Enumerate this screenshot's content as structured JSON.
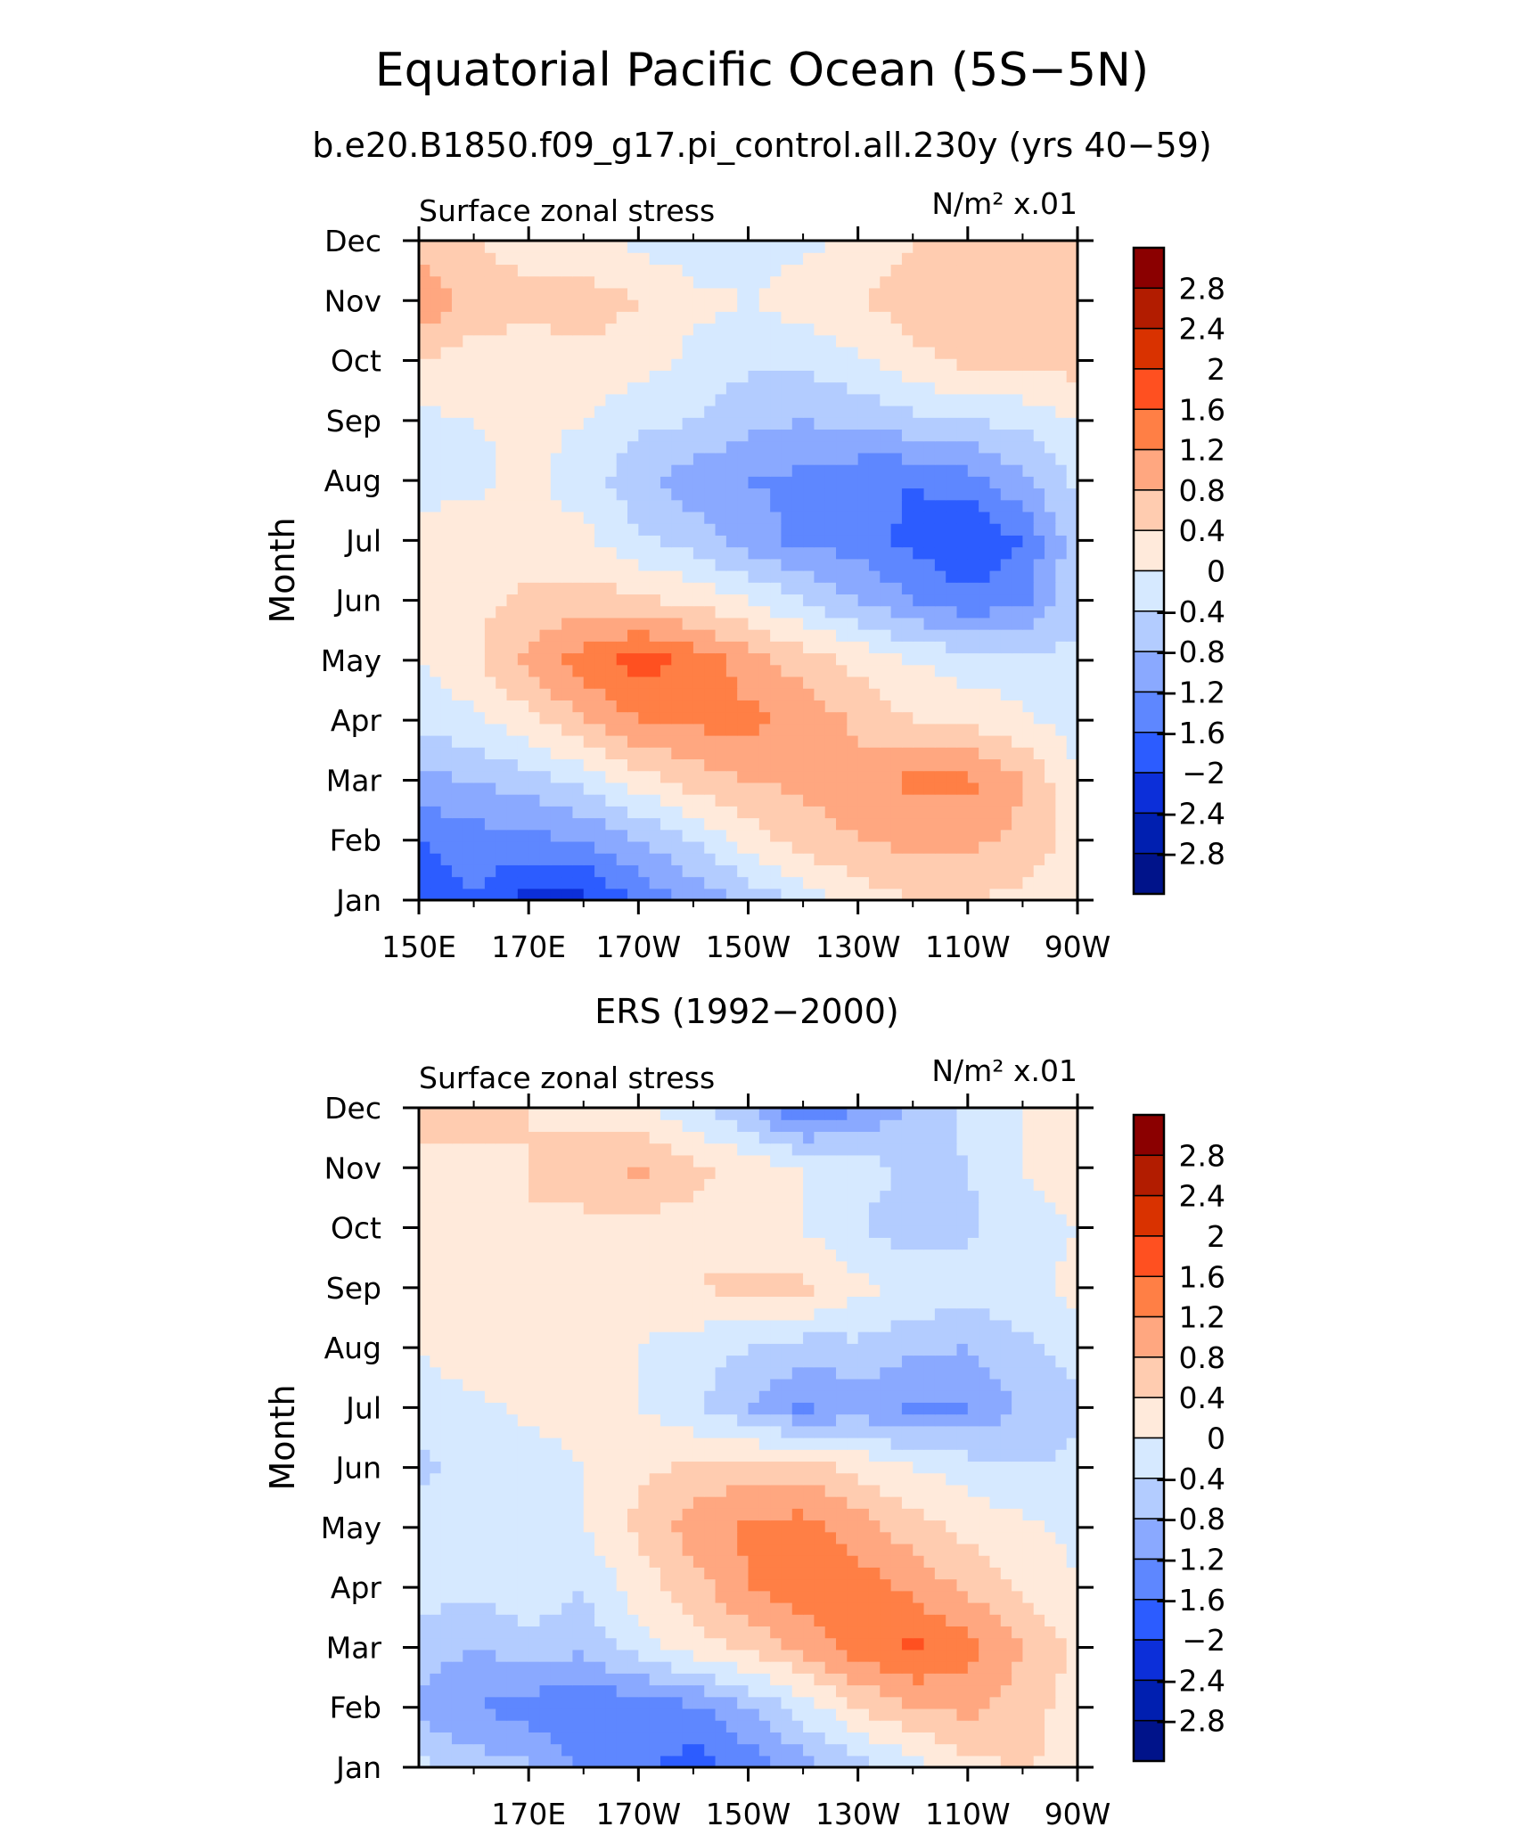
{
  "title": "Equatorial Pacific Ocean (5S−5N)",
  "panel_labels": [
    "b.e20.B1850.f09_g17.pi_control.all.230y (yrs 40−59)",
    "ERS (1992−2000)"
  ],
  "colorbar": {
    "levels": [
      "2.8",
      "2.4",
      "2",
      "1.6",
      "1.2",
      "0.8",
      "0.4",
      "0",
      "−0.4",
      "−0.8",
      "−1.2",
      "−1.6",
      "−2",
      "−2.4",
      "−2.8"
    ],
    "colors": [
      "#8b0000",
      "#b21c00",
      "#d93200",
      "#ff5020",
      "#ff7f45",
      "#ffa780",
      "#ffccb0",
      "#ffeadb",
      "#d6e9ff",
      "#b3ccff",
      "#8aa9ff",
      "#5e87ff",
      "#2c5cff",
      "#0c2fd9",
      "#001fb0",
      "#00138a"
    ]
  },
  "chart_data": [
    {
      "type": "heatmap",
      "title": "",
      "left_label": "Surface zonal stress",
      "right_label": "N/m² x.01",
      "ylabel": "Month",
      "xlabel": "",
      "x_ticks": [
        "150E",
        "170E",
        "170W",
        "150W",
        "130W",
        "110W",
        "90W"
      ],
      "y_ticks": [
        "Jan",
        "Feb",
        "Mar",
        "Apr",
        "May",
        "Jun",
        "Jul",
        "Aug",
        "Sep",
        "Oct",
        "Nov",
        "Dec"
      ],
      "xlim": [
        "150E",
        "90W"
      ],
      "x": [
        "150E",
        "160E",
        "170E",
        "180",
        "170W",
        "160W",
        "150W",
        "140W",
        "130W",
        "120W",
        "110W",
        "100W",
        "90W"
      ],
      "y": [
        "Jan",
        "Feb",
        "Mar",
        "Apr",
        "May",
        "Jun",
        "Jul",
        "Aug",
        "Sep",
        "Oct",
        "Nov",
        "Dec"
      ],
      "values": [
        [
          -1.9,
          -1.6,
          -2.2,
          -2.1,
          -1.5,
          -1.1,
          -0.7,
          -0.3,
          0.2,
          0.4,
          0.4,
          0.3,
          0.1
        ],
        [
          -1.6,
          -1.4,
          -1.3,
          -1.2,
          -0.8,
          -0.4,
          0.2,
          0.6,
          0.8,
          0.9,
          0.9,
          0.7,
          0.2
        ],
        [
          -0.9,
          -0.8,
          -0.6,
          -0.3,
          0.2,
          0.6,
          0.8,
          0.9,
          1.0,
          1.3,
          1.3,
          0.8,
          0.0
        ],
        [
          -0.3,
          -0.1,
          0.3,
          0.8,
          1.2,
          1.3,
          1.3,
          1.1,
          0.7,
          0.4,
          0.3,
          0.1,
          -0.2
        ],
        [
          0.0,
          0.3,
          0.9,
          1.4,
          1.8,
          1.5,
          1.0,
          0.6,
          0.3,
          0.0,
          -0.2,
          -0.3,
          -0.3
        ],
        [
          0.1,
          0.3,
          0.5,
          0.6,
          0.5,
          0.3,
          0.0,
          -0.4,
          -0.8,
          -1.2,
          -1.5,
          -1.3,
          -0.5
        ],
        [
          0.1,
          0.2,
          0.2,
          0.1,
          -0.3,
          -0.6,
          -1.0,
          -1.3,
          -1.4,
          -1.7,
          -2.0,
          -1.6,
          -0.5
        ],
        [
          -0.1,
          -0.1,
          0.1,
          -0.2,
          -0.7,
          -1.0,
          -1.2,
          -1.3,
          -1.5,
          -1.6,
          -1.4,
          -0.9,
          -0.3
        ],
        [
          -0.1,
          0.0,
          0.1,
          0.0,
          -0.3,
          -0.4,
          -0.7,
          -0.8,
          -0.7,
          -0.5,
          -0.4,
          -0.3,
          0.0
        ],
        [
          0.4,
          0.2,
          0.2,
          0.3,
          0.2,
          -0.1,
          -0.3,
          -0.3,
          -0.1,
          0.3,
          0.5,
          0.5,
          0.6
        ],
        [
          1.1,
          0.7,
          0.5,
          0.6,
          0.4,
          0.1,
          0.0,
          0.2,
          0.4,
          0.6,
          0.6,
          0.8,
          0.6
        ],
        [
          0.6,
          0.4,
          0.2,
          0.1,
          -0.1,
          -0.2,
          -0.2,
          -0.1,
          0.1,
          0.4,
          0.4,
          0.4,
          0.4
        ]
      ]
    },
    {
      "type": "heatmap",
      "title": "",
      "left_label": "Surface zonal stress",
      "right_label": "N/m² x.01",
      "ylabel": "Month",
      "xlabel": "",
      "x_ticks": [
        "170E",
        "170W",
        "150W",
        "130W",
        "110W",
        "90W"
      ],
      "y_ticks": [
        "Jan",
        "Feb",
        "Mar",
        "Apr",
        "May",
        "Jun",
        "Jul",
        "Aug",
        "Sep",
        "Oct",
        "Nov",
        "Dec"
      ],
      "xlim": [
        "150E",
        "90W"
      ],
      "x": [
        "150E",
        "160E",
        "170E",
        "180",
        "170W",
        "160W",
        "150W",
        "140W",
        "130W",
        "120W",
        "110W",
        "100W",
        "90W"
      ],
      "y": [
        "Jan",
        "Feb",
        "Mar",
        "Apr",
        "May",
        "Jun",
        "Jul",
        "Aug",
        "Sep",
        "Oct",
        "Nov",
        "Dec"
      ],
      "values": [
        [
          -0.3,
          -0.6,
          -0.7,
          -1.3,
          -1.5,
          -1.8,
          -1.5,
          -1.0,
          -0.6,
          -0.2,
          0.3,
          0.4,
          0.3
        ],
        [
          -0.9,
          -1.2,
          -1.4,
          -1.6,
          -1.4,
          -1.3,
          -0.8,
          -0.2,
          0.4,
          0.8,
          0.9,
          0.6,
          0.2
        ],
        [
          -0.6,
          -0.8,
          -0.6,
          -0.7,
          -0.2,
          0.2,
          0.5,
          0.9,
          1.4,
          1.7,
          1.4,
          0.8,
          0.3
        ],
        [
          -0.2,
          -0.3,
          -0.1,
          -0.4,
          0.2,
          0.6,
          1.2,
          1.5,
          1.4,
          1.1,
          0.7,
          0.3,
          0.0
        ],
        [
          -0.2,
          -0.2,
          -0.1,
          0.0,
          0.5,
          1.0,
          1.3,
          1.4,
          1.0,
          0.6,
          0.3,
          0.1,
          -0.1
        ],
        [
          -0.5,
          -0.3,
          -0.2,
          0.0,
          0.3,
          0.5,
          0.6,
          0.6,
          0.3,
          0.0,
          -0.2,
          -0.4,
          -0.3
        ],
        [
          -0.1,
          -0.1,
          0.1,
          0.1,
          0.0,
          -0.3,
          -0.8,
          -1.3,
          -1.0,
          -1.3,
          -1.2,
          -0.7,
          -0.5
        ],
        [
          0.0,
          0.2,
          0.2,
          0.2,
          0.0,
          -0.2,
          -0.4,
          -0.6,
          -0.5,
          -0.7,
          -0.8,
          -0.5,
          -0.2
        ],
        [
          0.3,
          0.2,
          0.3,
          0.2,
          0.2,
          0.4,
          0.5,
          0.5,
          0.1,
          -0.1,
          -0.2,
          -0.1,
          0.1
        ],
        [
          0.4,
          0.2,
          0.4,
          0.3,
          0.2,
          0.3,
          0.2,
          0.0,
          -0.4,
          -0.6,
          -0.5,
          -0.2,
          0.0
        ],
        [
          0.4,
          0.3,
          0.4,
          0.6,
          0.9,
          0.5,
          0.3,
          0.0,
          -0.2,
          -0.5,
          -0.4,
          0.0,
          0.2
        ],
        [
          0.4,
          0.6,
          0.4,
          0.3,
          0.1,
          -0.3,
          -0.8,
          -1.6,
          -1.2,
          -0.7,
          -0.3,
          0.0,
          0.1
        ]
      ]
    }
  ]
}
